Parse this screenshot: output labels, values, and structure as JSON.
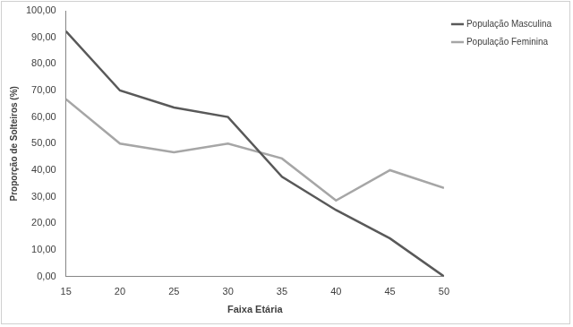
{
  "chart_data": {
    "type": "line",
    "x_label": "Faixa Etária",
    "y_label": "Proporção de Solteiros (%)",
    "x": [
      15,
      20,
      25,
      30,
      35,
      40,
      45,
      50
    ],
    "series": [
      {
        "name": "População Masculina",
        "color": "#595959",
        "values": [
          92.3,
          70,
          63.6,
          60,
          37.5,
          25,
          14.3,
          0
        ]
      },
      {
        "name": "População Feminina",
        "color": "#a6a6a6",
        "values": [
          66.7,
          50,
          46.7,
          50,
          44.4,
          28.6,
          40,
          33.3
        ]
      }
    ],
    "xlim": [
      15,
      50
    ],
    "xticks": [
      15,
      20,
      25,
      30,
      35,
      40,
      45,
      50
    ],
    "ylim": [
      0,
      100
    ],
    "yticks": [
      {
        "value": 0,
        "label": "0,00"
      },
      {
        "value": 10,
        "label": "10,00"
      },
      {
        "value": 20,
        "label": "20,00"
      },
      {
        "value": 30,
        "label": "30,00"
      },
      {
        "value": 40,
        "label": "40,00"
      },
      {
        "value": 50,
        "label": "50,00"
      },
      {
        "value": 60,
        "label": "60,00"
      },
      {
        "value": 70,
        "label": "70,00"
      },
      {
        "value": 80,
        "label": "80,00"
      },
      {
        "value": 90,
        "label": "90,00"
      },
      {
        "value": 100,
        "label": "100,00"
      }
    ],
    "grid": false,
    "legend": "upper right"
  }
}
